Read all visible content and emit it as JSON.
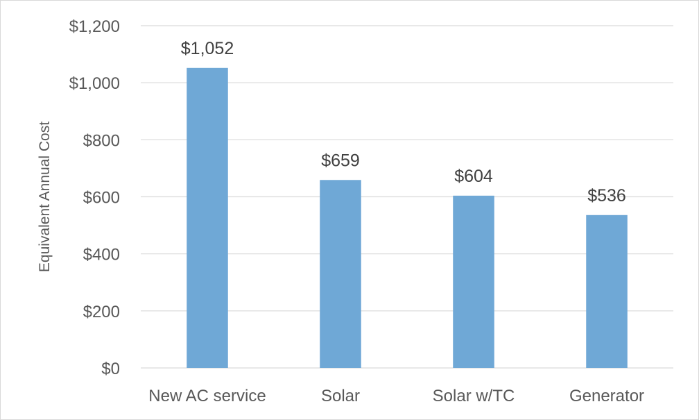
{
  "chart_data": {
    "type": "bar",
    "title": "",
    "xlabel": "",
    "ylabel": "Equivalent Annual Cost",
    "categories": [
      "New AC service",
      "Solar",
      "Solar w/TC",
      "Generator"
    ],
    "values": [
      1052,
      659,
      604,
      536
    ],
    "data_labels": [
      "$1,052",
      "$659",
      "$604",
      "$536"
    ],
    "ylim": [
      0,
      1200
    ],
    "yticks": [
      0,
      200,
      400,
      600,
      800,
      1000,
      1200
    ],
    "ytick_labels": [
      "$0",
      "$200",
      "$400",
      "$600",
      "$800",
      "$1,000",
      "$1,200"
    ],
    "grid": true,
    "legend": "none",
    "bar_color": "#6fa8d6",
    "grid_color": "#d9d9d9"
  }
}
